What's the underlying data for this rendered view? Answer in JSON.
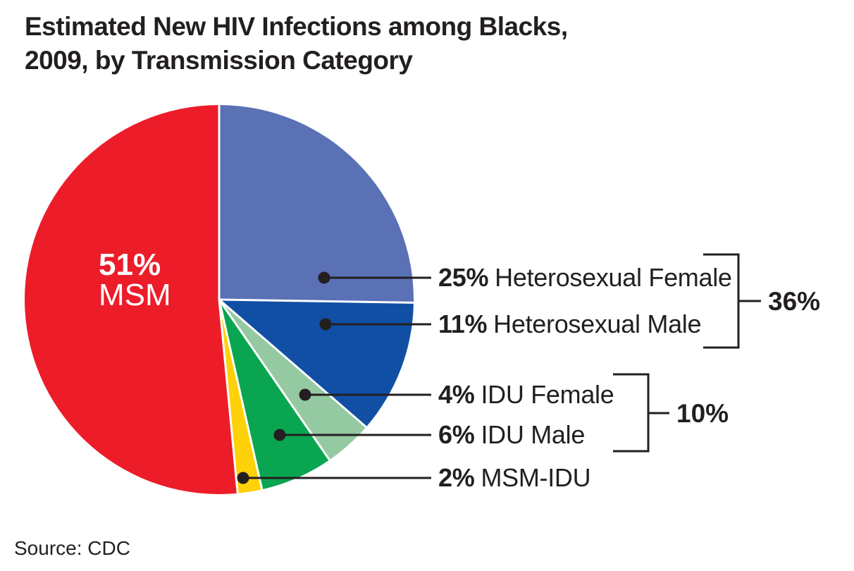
{
  "title": {
    "line1": "Estimated New HIV Infections among Blacks,",
    "line2": "2009, by Transmission Category"
  },
  "source": "Source: CDC",
  "colors": {
    "text": "#231f20",
    "leader_line": "#231f20",
    "divider": "#ffffff",
    "background": "#ffffff",
    "inside_label_text": "#ffffff"
  },
  "chart_data": {
    "type": "pie",
    "title": "Estimated New HIV Infections among Blacks, 2009, by Transmission Category",
    "source": "Source: CDC",
    "start_angle_deg": 0,
    "direction": "clockwise",
    "slices": [
      {
        "label": "Heterosexual Female",
        "pct": 25,
        "pct_label": "25%",
        "color": "#5a71b6"
      },
      {
        "label": "Heterosexual Male",
        "pct": 11,
        "pct_label": "11%",
        "color": "#114fa5"
      },
      {
        "label": "IDU Female",
        "pct": 4,
        "pct_label": "4%",
        "color": "#94c9a1"
      },
      {
        "label": "IDU Male",
        "pct": 6,
        "pct_label": "6%",
        "color": "#0aa551"
      },
      {
        "label": "MSM-IDU",
        "pct": 2,
        "pct_label": "2%",
        "color": "#fed108"
      },
      {
        "label": "MSM",
        "pct": 51,
        "pct_label": "51%",
        "color": "#ec1c29"
      }
    ],
    "groups": [
      {
        "label": "36%",
        "value": 36,
        "members": [
          "Heterosexual Female",
          "Heterosexual Male"
        ]
      },
      {
        "label": "10%",
        "value": 10,
        "members": [
          "IDU Female",
          "IDU Male"
        ]
      }
    ]
  }
}
